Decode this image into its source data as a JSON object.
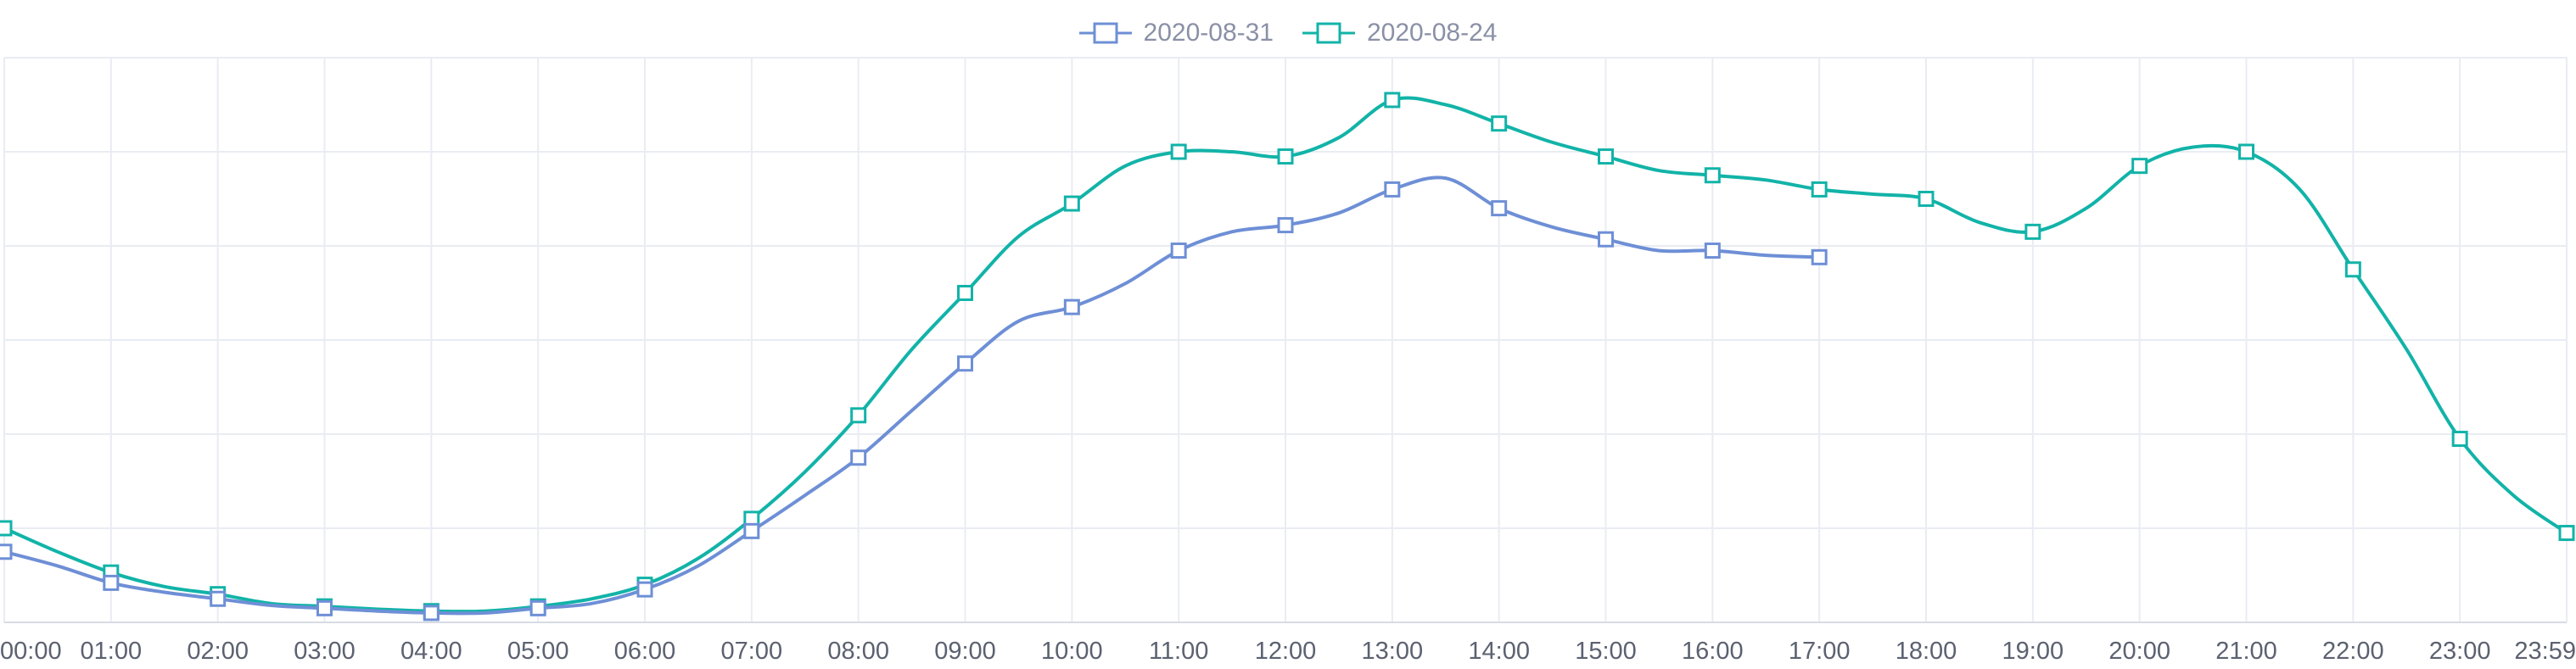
{
  "chart_data": {
    "type": "line",
    "title": "",
    "xlabel": "",
    "ylabel": "",
    "x_ticks": [
      "00:00",
      "01:00",
      "02:00",
      "03:00",
      "04:00",
      "05:00",
      "06:00",
      "07:00",
      "08:00",
      "09:00",
      "10:00",
      "11:00",
      "12:00",
      "13:00",
      "14:00",
      "15:00",
      "16:00",
      "17:00",
      "18:00",
      "19:00",
      "20:00",
      "21:00",
      "22:00",
      "23:00",
      "23:59"
    ],
    "x_range_hours": [
      0,
      24
    ],
    "y_range": [
      0,
      6
    ],
    "grid": true,
    "legend_position": "top-center",
    "marker": "square",
    "series": [
      {
        "name": "2020-08-31",
        "color": "#6e8fd6",
        "x_hours": [
          0,
          0.5,
          1,
          1.5,
          2,
          2.5,
          3,
          3.5,
          4,
          4.5,
          5,
          5.5,
          6,
          6.5,
          7,
          7.5,
          8,
          8.5,
          9,
          9.5,
          10,
          10.5,
          11,
          11.5,
          12,
          12.5,
          13,
          13.5,
          14,
          14.5,
          15,
          15.5,
          16,
          16.5,
          17
        ],
        "values": [
          0.75,
          0.6,
          0.42,
          0.32,
          0.25,
          0.18,
          0.15,
          0.12,
          0.1,
          0.1,
          0.15,
          0.2,
          0.35,
          0.6,
          0.97,
          1.35,
          1.75,
          2.25,
          2.75,
          3.2,
          3.35,
          3.6,
          3.95,
          4.15,
          4.22,
          4.35,
          4.6,
          4.72,
          4.4,
          4.2,
          4.07,
          3.95,
          3.95,
          3.9,
          3.88
        ]
      },
      {
        "name": "2020-08-24",
        "color": "#12b3a8",
        "x_hours": [
          0,
          0.5,
          1,
          1.5,
          2,
          2.5,
          3,
          3.5,
          4,
          4.5,
          5,
          5.5,
          6,
          6.5,
          7,
          7.5,
          8,
          8.5,
          9,
          9.5,
          10,
          10.5,
          11,
          11.5,
          12,
          12.5,
          13,
          13.5,
          14,
          14.5,
          15,
          15.5,
          16,
          16.5,
          17,
          17.5,
          18,
          18.5,
          19,
          19.5,
          20,
          20.5,
          21,
          21.5,
          22,
          22.5,
          23,
          23.5,
          24
        ],
        "values": [
          1.0,
          0.75,
          0.53,
          0.38,
          0.3,
          0.2,
          0.17,
          0.14,
          0.12,
          0.12,
          0.17,
          0.25,
          0.4,
          0.68,
          1.1,
          1.6,
          2.2,
          2.9,
          3.5,
          4.1,
          4.45,
          4.85,
          5.0,
          5.0,
          4.95,
          5.15,
          5.55,
          5.5,
          5.3,
          5.1,
          4.95,
          4.8,
          4.75,
          4.7,
          4.6,
          4.55,
          4.5,
          4.25,
          4.15,
          4.4,
          4.85,
          5.05,
          5.0,
          4.6,
          3.75,
          2.9,
          1.95,
          1.35,
          0.95
        ]
      }
    ]
  }
}
